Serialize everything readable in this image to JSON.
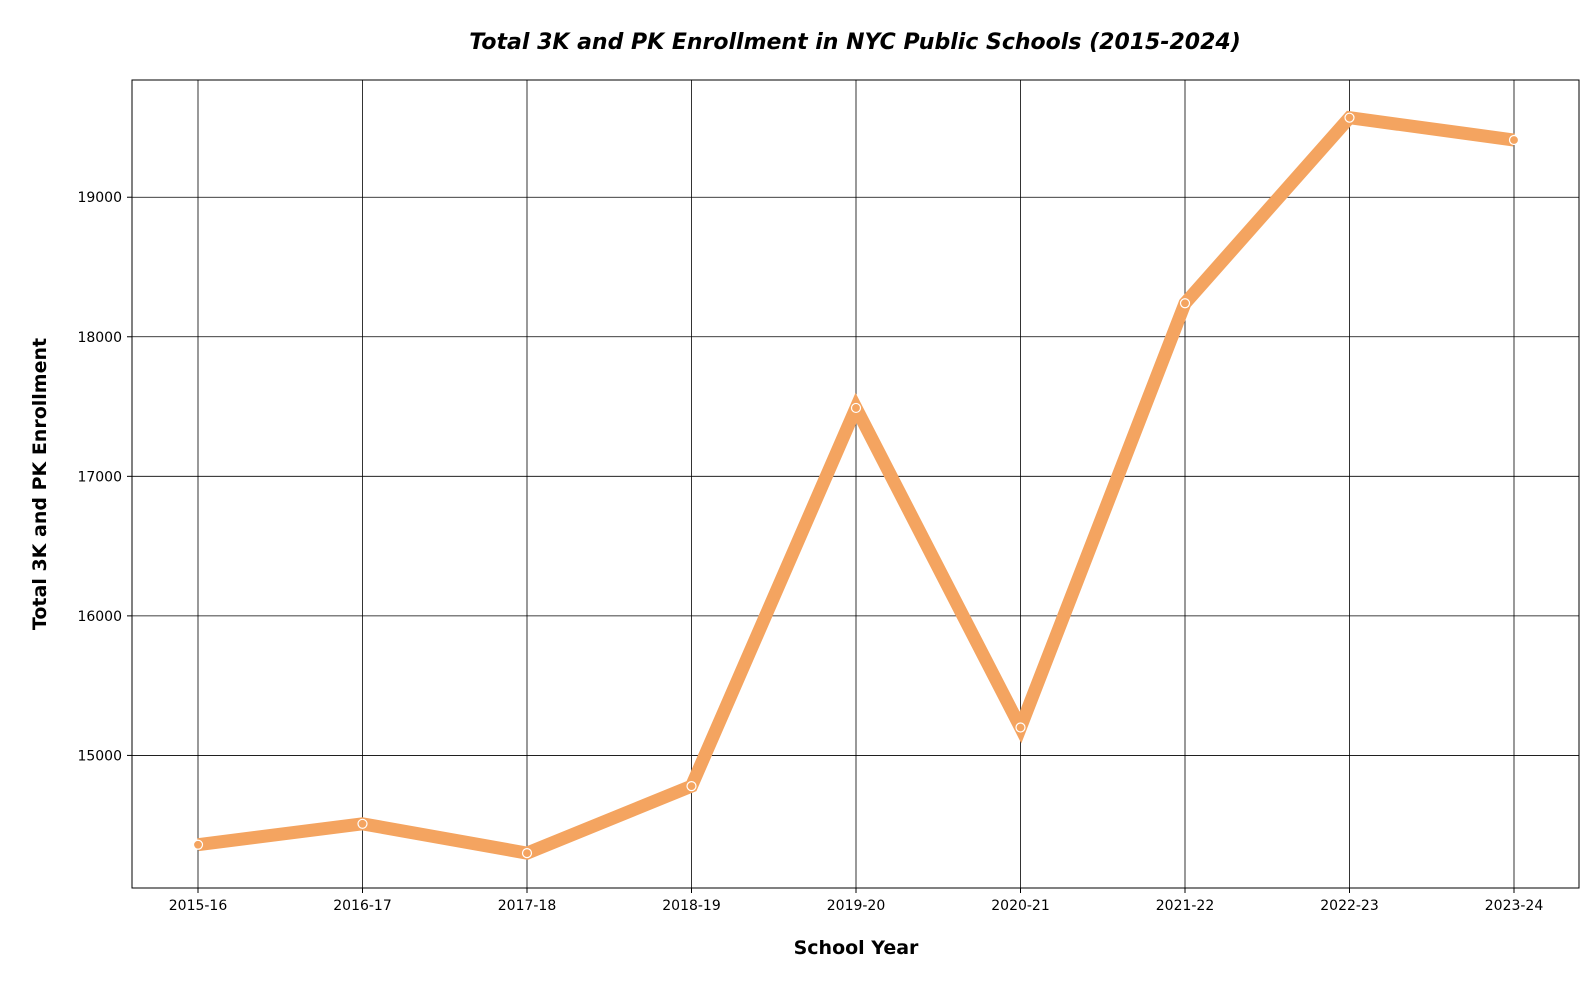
{
  "chart_data": {
    "type": "line",
    "title": "Total 3K and PK Enrollment in NYC Public Schools (2015-2024)",
    "xlabel": "School Year",
    "ylabel": "Total 3K and PK Enrollment",
    "categories": [
      "2015-16",
      "2016-17",
      "2017-18",
      "2018-19",
      "2019-20",
      "2020-21",
      "2021-22",
      "2022-23",
      "2023-24"
    ],
    "series": [
      {
        "values": [
          14360,
          14510,
          14300,
          14780,
          17490,
          15200,
          18240,
          19570,
          19410
        ],
        "color": "#f4a460"
      }
    ],
    "yticks": [
      15000,
      16000,
      17000,
      18000,
      19000
    ],
    "ylim": [
      14050,
      19840
    ],
    "grid": true,
    "marker": "circle"
  }
}
